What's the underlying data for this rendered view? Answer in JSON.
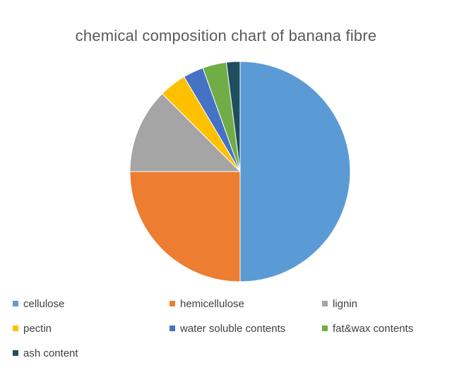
{
  "chart_data": {
    "type": "pie",
    "title": "chemical composition chart of banana fibre",
    "legend_position": "bottom",
    "start_angle_deg": 0,
    "direction": "clockwise",
    "slices": [
      {
        "label": "cellulose",
        "value": 50,
        "color": "#5B9BD5"
      },
      {
        "label": "hemicellulose",
        "value": 25,
        "color": "#ED7D31"
      },
      {
        "label": "lignin",
        "value": 12.5,
        "color": "#A5A5A5"
      },
      {
        "label": "pectin",
        "value": 4,
        "color": "#FFC000"
      },
      {
        "label": "water soluble contents",
        "value": 3,
        "color": "#4472C4"
      },
      {
        "label": "fat&wax contents",
        "value": 3.5,
        "color": "#70AD47"
      },
      {
        "label": "ash content",
        "value": 2,
        "color": "#1F4E5F"
      }
    ],
    "title_color": "#595959",
    "legend_text_color": "#404040",
    "background_color": "#FFFFFF"
  }
}
